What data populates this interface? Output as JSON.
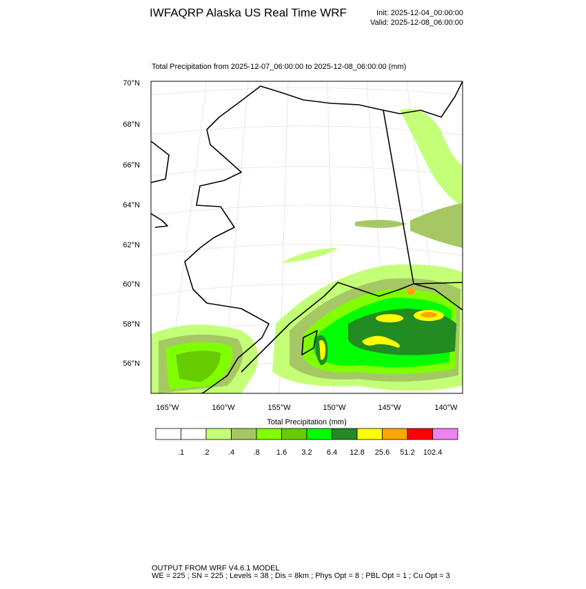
{
  "header": {
    "title": "IWFAQRP Alaska US Real Time WRF",
    "init": "Init: 2025-12-04_00:00:00",
    "valid": "Valid: 2025-12-08_06:00:00"
  },
  "map": {
    "subtitle": "Total Precipitation from 2025-12-07_06:00:00 to 2025-12-08_06:00:00   (mm)",
    "lat_labels": [
      "70°N",
      "68°N",
      "66°N",
      "64°N",
      "62°N",
      "60°N",
      "58°N",
      "56°N"
    ],
    "lon_labels": [
      "165°W",
      "160°W",
      "155°W",
      "150°W",
      "145°W",
      "140°W"
    ]
  },
  "colorbar": {
    "title": "Total Precipitation  (mm)",
    "colors": [
      "#ffffff",
      "#ffffff",
      "#c4ff78",
      "#a5c864",
      "#80ff00",
      "#66cc00",
      "#00ff00",
      "#228b22",
      "#ffff00",
      "#ffa500",
      "#ff0000",
      "#ee82ee"
    ],
    "labels": [
      ".1",
      ".2",
      ".4",
      ".8",
      "1.6",
      "3.2",
      "6.4",
      "12.8",
      "25.6",
      "51.2",
      "102.4"
    ]
  },
  "footer": {
    "line1": "OUTPUT FROM WRF V4.6.1 MODEL",
    "line2": "WE = 225 ; SN = 225 ; Levels = 38 ; Dis = 8km ; Phys Opt = 8 ; PBL Opt = 1 ; Cu Opt = 3"
  }
}
